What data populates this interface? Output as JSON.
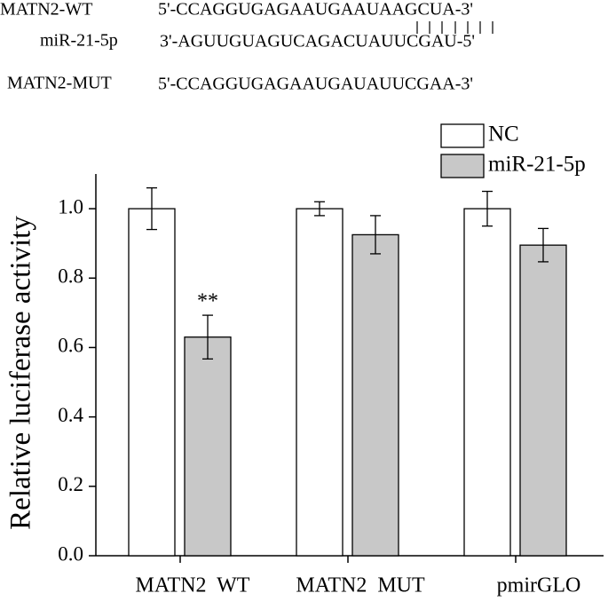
{
  "sequences": [
    {
      "label": "MATN2-WT",
      "sequence": "5'-CCAGGUGAGAAUGAAUAAGCUA-3'"
    },
    {
      "label": "miR-21-5p",
      "sequence": "3'-AGUUGUAGUCAGACUAUUCGAU-5'"
    },
    {
      "label": "MATN2-MUT",
      "sequence": "5'-CCAGGUGAGAAUGAUAUUCGAA-3'"
    }
  ],
  "chart_data": {
    "type": "bar",
    "y_label": "Relative luciferase activity",
    "categories": [
      "MATN2  WT",
      "MATN2  MUT",
      "pmirGLO"
    ],
    "series": [
      {
        "name": "NC",
        "color": "#ffffff",
        "values": [
          1.0,
          1.0,
          1.0
        ],
        "errors": [
          0.06,
          0.02,
          0.05
        ]
      },
      {
        "name": "miR-21-5p",
        "color": "#c8c8c8",
        "values": [
          0.63,
          0.925,
          0.895
        ],
        "errors": [
          0.063,
          0.055,
          0.048
        ]
      }
    ],
    "annotation": "**",
    "ylim": [
      0,
      1.1
    ],
    "yticks": [
      {
        "value": 0,
        "label": "0.0"
      },
      {
        "value": 0.2,
        "label": "0.2"
      },
      {
        "value": 0.4,
        "label": "0.4"
      },
      {
        "value": 0.6,
        "label": "0.6"
      },
      {
        "value": 0.8,
        "label": "0.8"
      },
      {
        "value": 1.0,
        "label": "1.0"
      }
    ],
    "legend": "top-right"
  }
}
